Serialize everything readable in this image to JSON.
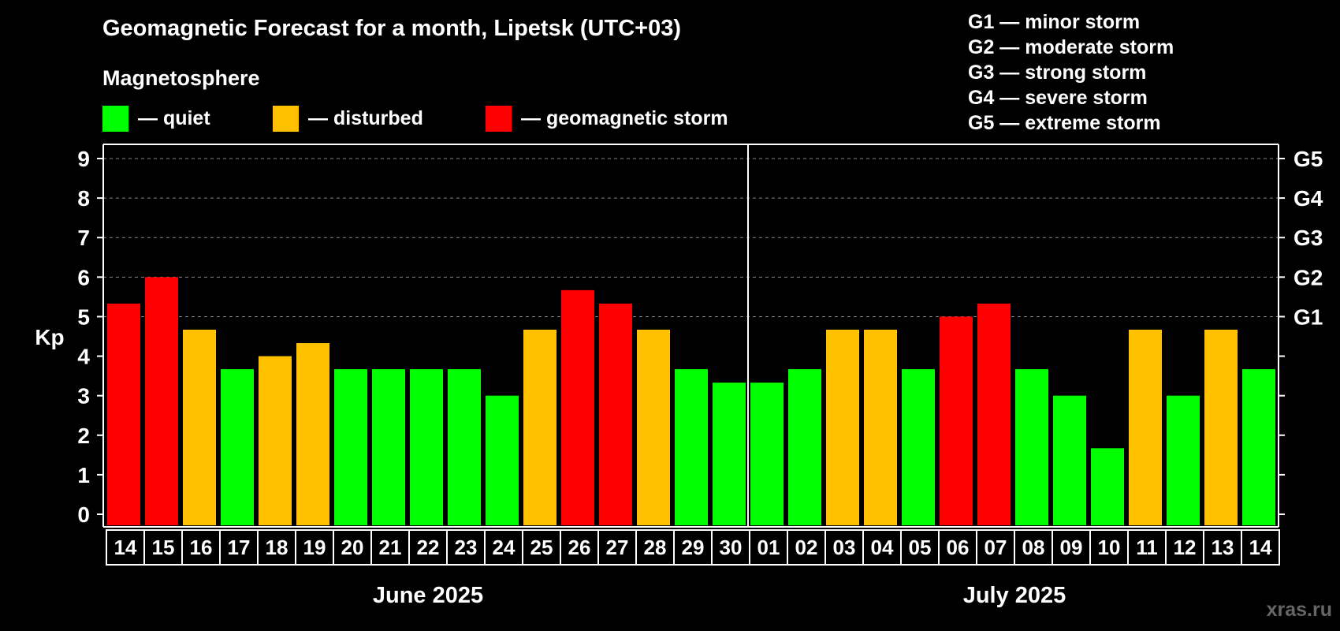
{
  "title": "Geomagnetic Forecast for a month, Lipetsk (UTC+03)",
  "legend": {
    "title": "Magnetosphere",
    "items": [
      {
        "label": "— quiet",
        "color": "#00ff00"
      },
      {
        "label": "— disturbed",
        "color": "#ffc000"
      },
      {
        "label": "— geomagnetic storm",
        "color": "#ff0000"
      }
    ]
  },
  "storm_levels": [
    "G1 — minor storm",
    "G2 — moderate storm",
    "G3 — strong storm",
    "G4 — severe storm",
    "G5 — extreme storm"
  ],
  "watermark": "xras.ru",
  "chart_data": {
    "type": "bar",
    "ylabel": "Kp",
    "ylim": [
      0,
      9
    ],
    "y_ticks": [
      "0",
      "1",
      "2",
      "3",
      "4",
      "5",
      "6",
      "7",
      "8",
      "9"
    ],
    "right_ticks": [
      {
        "kp": 5,
        "label": "G1"
      },
      {
        "kp": 6,
        "label": "G2"
      },
      {
        "kp": 7,
        "label": "G3"
      },
      {
        "kp": 8,
        "label": "G4"
      },
      {
        "kp": 9,
        "label": "G5"
      }
    ],
    "grid": "dashed horizontal from Kp 5 to 9",
    "categories": [
      "14",
      "15",
      "16",
      "17",
      "18",
      "19",
      "20",
      "21",
      "22",
      "23",
      "24",
      "25",
      "26",
      "27",
      "28",
      "29",
      "30",
      "01",
      "02",
      "03",
      "04",
      "05",
      "06",
      "07",
      "08",
      "09",
      "10",
      "11",
      "12",
      "13",
      "14"
    ],
    "values": [
      5.33,
      6.0,
      4.67,
      3.67,
      4.0,
      4.33,
      3.67,
      3.67,
      3.67,
      3.67,
      3.0,
      4.67,
      5.67,
      5.33,
      4.67,
      3.67,
      3.33,
      3.33,
      3.67,
      4.67,
      4.67,
      3.67,
      5.0,
      5.33,
      3.67,
      3.0,
      1.67,
      4.67,
      3.0,
      4.67,
      3.67
    ],
    "status": [
      "storm",
      "storm",
      "disturbed",
      "quiet",
      "disturbed",
      "disturbed",
      "quiet",
      "quiet",
      "quiet",
      "quiet",
      "quiet",
      "disturbed",
      "storm",
      "storm",
      "disturbed",
      "quiet",
      "quiet",
      "quiet",
      "quiet",
      "disturbed",
      "disturbed",
      "quiet",
      "storm",
      "storm",
      "quiet",
      "quiet",
      "quiet",
      "disturbed",
      "quiet",
      "disturbed",
      "quiet"
    ],
    "status_colors": {
      "quiet": "#00ff00",
      "disturbed": "#ffc000",
      "storm": "#ff0000"
    },
    "months": [
      {
        "label": "June 2025",
        "start": 0,
        "end": 16
      },
      {
        "label": "July 2025",
        "start": 17,
        "end": 30
      }
    ]
  }
}
